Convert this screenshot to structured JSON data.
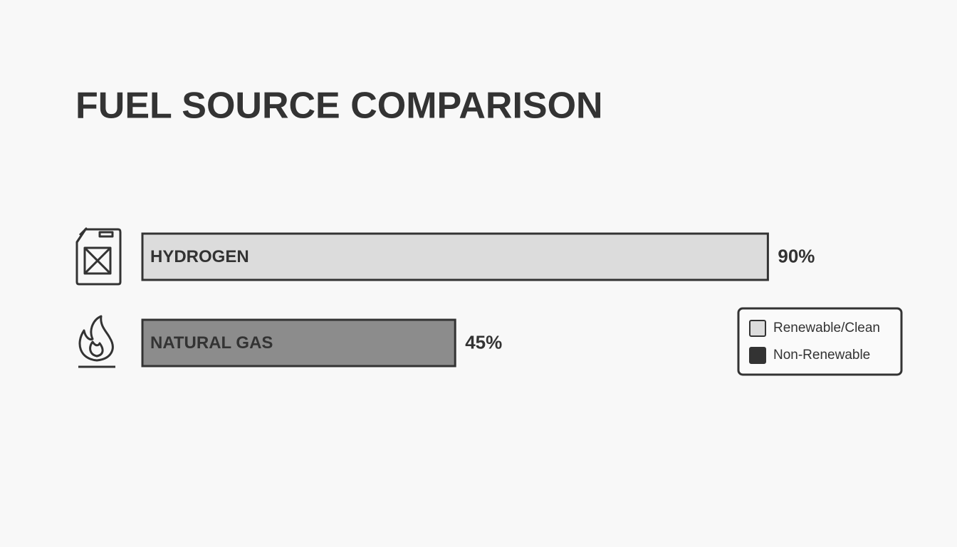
{
  "chart_data": {
    "type": "bar",
    "orientation": "horizontal",
    "title": "FUEL SOURCE COMPARISON",
    "categories": [
      "HYDROGEN",
      "NATURAL GAS"
    ],
    "values": [
      90,
      45
    ],
    "value_labels": [
      "90%",
      "45%"
    ],
    "colors": [
      "#dcdcdc",
      "#8c8c8c"
    ],
    "legend": [
      {
        "name": "Renewable/Clean",
        "color": "#dcdcdc"
      },
      {
        "name": "Non-Renewable",
        "color": "#333333"
      }
    ]
  }
}
